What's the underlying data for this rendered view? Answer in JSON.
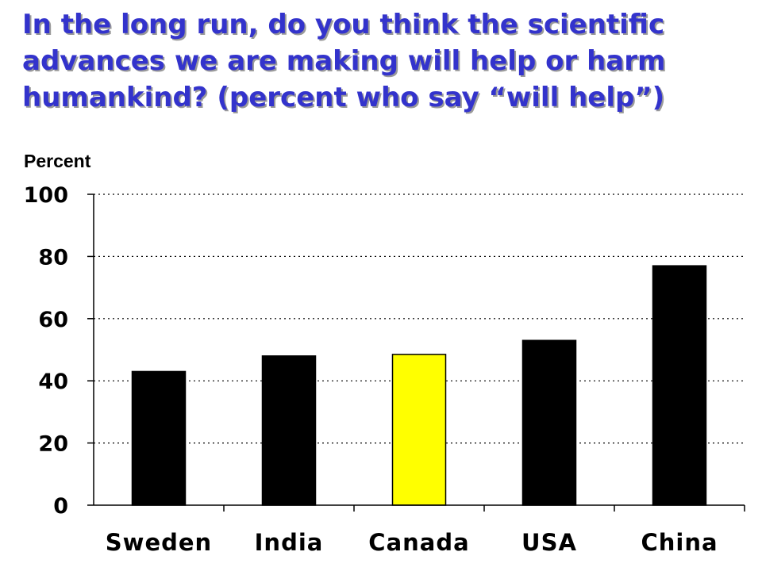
{
  "chart_data": {
    "type": "bar",
    "title": "In the long run, do you think the scientific advances we are making will help or harm humankind? (percent who say “will help”)",
    "ylabel": "Percent",
    "xlabel": "",
    "categories": [
      "Sweden",
      "India",
      "Canada",
      "USA",
      "China"
    ],
    "values": [
      43,
      48,
      48.5,
      53,
      77
    ],
    "ylim": [
      0,
      100
    ],
    "yticks": [
      "0",
      "20",
      "40",
      "60",
      "80",
      "100"
    ],
    "grid": "dotted horizontal",
    "bar_colors": [
      "#000000",
      "#000000",
      "#ffff00",
      "#000000",
      "#000000"
    ]
  }
}
